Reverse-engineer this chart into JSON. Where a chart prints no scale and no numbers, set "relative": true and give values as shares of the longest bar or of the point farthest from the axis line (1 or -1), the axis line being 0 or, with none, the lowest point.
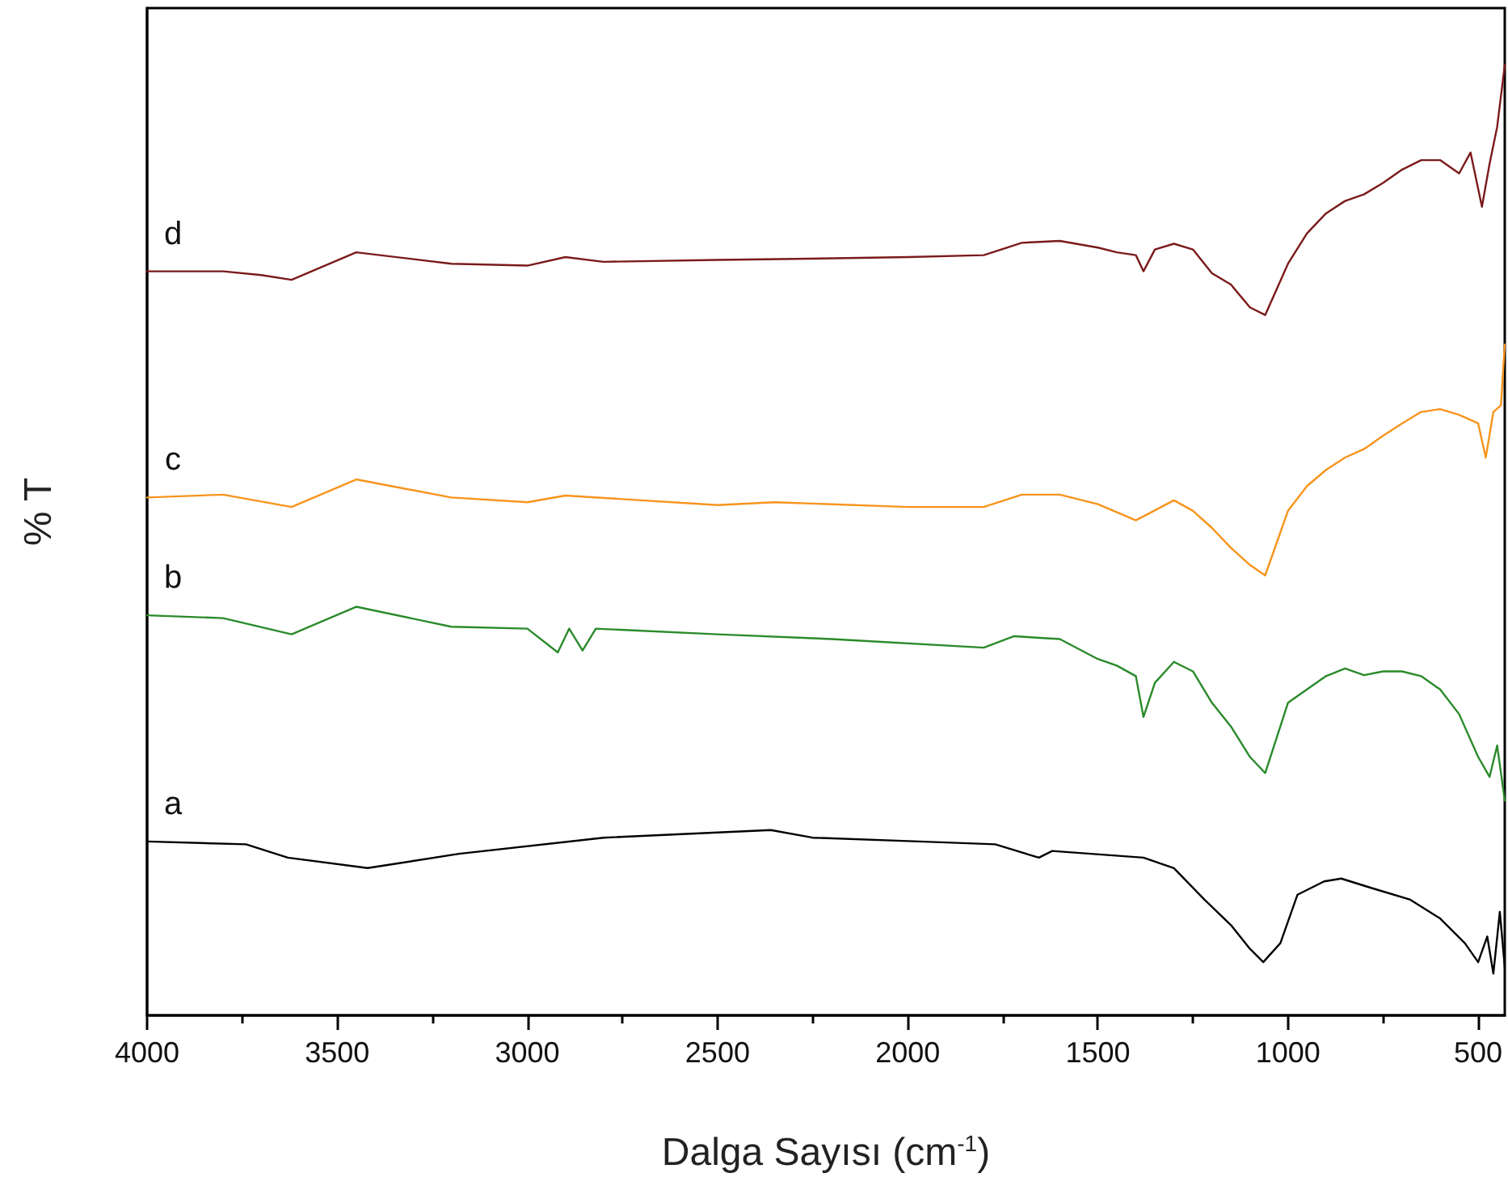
{
  "chart_data": {
    "type": "line",
    "relative": true,
    "xlabel": "Dalga Sayısı (cm$^{-1}$)",
    "ylabel": "% T",
    "marker": "none",
    "xlim": [
      4000,
      430
    ],
    "xticks": [
      4000,
      {
        "value": 3750,
        "label": null
      },
      3500,
      {
        "value": 3250,
        "label": null
      },
      3000,
      {
        "value": 2750,
        "label": null
      },
      2500,
      {
        "value": 2250,
        "label": null
      },
      2000,
      {
        "value": 1750,
        "label": null
      },
      1500,
      {
        "value": 1250,
        "label": null
      },
      1000,
      {
        "value": 750,
        "label": null
      },
      500
    ],
    "series": [
      {
        "name": "a",
        "color": "#000000",
        "x": [
          4000,
          3740,
          3630,
          3420,
          3180,
          2800,
          2360,
          2250,
          1970,
          1770,
          1655,
          1620,
          1380,
          1300,
          1220,
          1150,
          1100,
          1065,
          1020,
          975,
          905,
          860,
          780,
          680,
          600,
          535,
          500,
          476,
          460,
          443,
          430
        ],
        "values": [
          0.183,
          0.18,
          0.166,
          0.155,
          0.17,
          0.187,
          0.195,
          0.187,
          0.183,
          0.18,
          0.166,
          0.173,
          0.166,
          0.155,
          0.122,
          0.095,
          0.07,
          0.056,
          0.076,
          0.127,
          0.141,
          0.144,
          0.134,
          0.122,
          0.102,
          0.076,
          0.056,
          0.083,
          0.044,
          0.109,
          0.051
        ]
      },
      {
        "name": "b",
        "color": "#2a8a2a",
        "x": [
          4000,
          3800,
          3620,
          3450,
          3200,
          3000,
          2920,
          2890,
          2855,
          2820,
          2500,
          2200,
          1800,
          1720,
          1600,
          1500,
          1450,
          1400,
          1380,
          1350,
          1300,
          1250,
          1200,
          1150,
          1100,
          1060,
          1000,
          950,
          900,
          850,
          800,
          750,
          700,
          650,
          600,
          550,
          500,
          470,
          450,
          430
        ],
        "values": [
          0.421,
          0.418,
          0.401,
          0.43,
          0.409,
          0.407,
          0.382,
          0.407,
          0.384,
          0.407,
          0.401,
          0.396,
          0.387,
          0.399,
          0.396,
          0.375,
          0.368,
          0.357,
          0.314,
          0.35,
          0.372,
          0.362,
          0.329,
          0.304,
          0.272,
          0.255,
          0.329,
          0.343,
          0.357,
          0.365,
          0.358,
          0.362,
          0.362,
          0.357,
          0.343,
          0.317,
          0.272,
          0.251,
          0.284,
          0.226
        ]
      },
      {
        "name": "c",
        "color": "#f7941d",
        "x": [
          4000,
          3800,
          3620,
          3450,
          3200,
          3000,
          2900,
          2500,
          2350,
          2000,
          1800,
          1700,
          1600,
          1500,
          1400,
          1300,
          1250,
          1200,
          1150,
          1100,
          1060,
          1000,
          950,
          900,
          850,
          800,
          750,
          700,
          650,
          600,
          550,
          500,
          480,
          460,
          440,
          430
        ],
        "values": [
          0.545,
          0.548,
          0.535,
          0.564,
          0.545,
          0.54,
          0.547,
          0.537,
          0.54,
          0.535,
          0.535,
          0.548,
          0.548,
          0.538,
          0.521,
          0.542,
          0.531,
          0.513,
          0.492,
          0.474,
          0.463,
          0.531,
          0.557,
          0.574,
          0.587,
          0.596,
          0.61,
          0.623,
          0.635,
          0.638,
          0.632,
          0.623,
          0.587,
          0.635,
          0.642,
          0.706
        ]
      },
      {
        "name": "d",
        "color": "#7b1a1a",
        "x": [
          4000,
          3800,
          3700,
          3620,
          3450,
          3200,
          3000,
          2900,
          2800,
          2500,
          2300,
          2000,
          1800,
          1700,
          1600,
          1500,
          1450,
          1400,
          1380,
          1350,
          1300,
          1250,
          1200,
          1150,
          1100,
          1060,
          1000,
          950,
          900,
          850,
          800,
          750,
          700,
          650,
          600,
          550,
          520,
          490,
          470,
          450,
          430
        ],
        "values": [
          0.783,
          0.783,
          0.779,
          0.774,
          0.803,
          0.791,
          0.789,
          0.798,
          0.793,
          0.795,
          0.796,
          0.798,
          0.8,
          0.813,
          0.815,
          0.808,
          0.803,
          0.8,
          0.783,
          0.806,
          0.812,
          0.806,
          0.781,
          0.769,
          0.745,
          0.737,
          0.791,
          0.823,
          0.844,
          0.857,
          0.864,
          0.876,
          0.89,
          0.9,
          0.9,
          0.886,
          0.908,
          0.851,
          0.896,
          0.935,
          1.0
        ]
      }
    ]
  }
}
